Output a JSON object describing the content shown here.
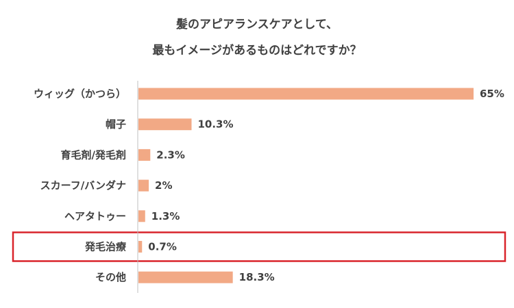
{
  "chart_data": {
    "type": "bar",
    "orientation": "horizontal",
    "title_lines": [
      "髪のアピアランスケアとして、",
      "最もイメージがあるものはどれですか？"
    ],
    "categories": [
      "ウィッグ（かつら）",
      "帽子",
      "育毛剤/発毛剤",
      "スカーフ/バンダナ",
      "ヘアタトゥー",
      "発毛治療",
      "その他"
    ],
    "values": [
      65,
      10.3,
      2.3,
      2,
      1.3,
      0.7,
      18.3
    ],
    "value_labels": [
      "65%",
      "10.3%",
      "2.3%",
      "2%",
      "1.3%",
      "0.7%",
      "18.3%"
    ],
    "unit": "%",
    "xlim": [
      0,
      65
    ],
    "highlighted_category": "発毛治療",
    "grid": false,
    "legend": "none",
    "colors": {
      "bar": "#F2A985",
      "axis": "#BFBFBF",
      "highlight_box": "#D9232A",
      "text": "#404040"
    }
  }
}
